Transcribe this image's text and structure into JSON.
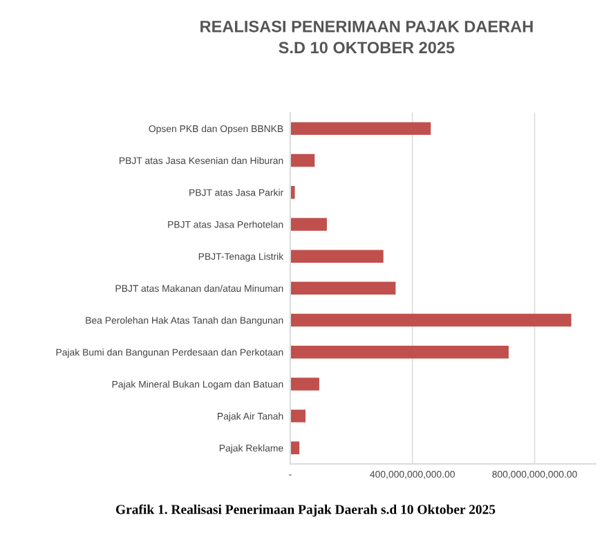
{
  "chart_data": {
    "type": "bar",
    "orientation": "horizontal",
    "title": "REALISASI PENERIMAAN PAJAK DAERAH\nS.D 10 OKTOBER 2025",
    "categories": [
      "Opsen PKB dan Opsen BBNKB",
      "PBJT atas Jasa Kesenian dan Hiburan",
      "PBJT atas Jasa Parkir",
      "PBJT atas Jasa Perhotelan",
      "PBJT-Tenaga Listrik",
      "PBJT atas Makanan dan/atau Minuman",
      "Bea Perolehan Hak Atas Tanah dan Bangunan",
      "Pajak Bumi dan Bangunan Perdesaan dan Perkotaan",
      "Pajak Mineral Bukan Logam dan Batuan",
      "Pajak Air Tanah",
      "Pajak Reklame"
    ],
    "values": [
      460000000000,
      80000000000,
      15000000000,
      120000000000,
      305000000000,
      345000000000,
      920000000000,
      715000000000,
      95000000000,
      50000000000,
      30000000000
    ],
    "color": "#c0504d",
    "xlim": [
      0,
      1000000000000
    ],
    "xticks": [
      {
        "value": 0,
        "label": "-"
      },
      {
        "value": 400000000000,
        "label": "400,000,000,000.00"
      },
      {
        "value": 800000000000,
        "label": "800,000,000,000.00"
      }
    ],
    "grid": "x",
    "annotations": [
      "Grafik 1. Realisasi Penerimaan Pajak Daerah s.d 10 Oktober 2025"
    ]
  }
}
